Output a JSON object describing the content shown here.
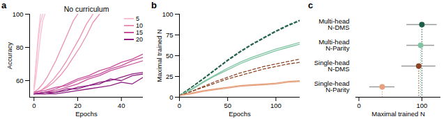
{
  "chart_data": [
    {
      "type": "line",
      "annotations": [
        "a"
      ],
      "title": "No curriculum",
      "x_label": "Epochs",
      "y_label": "Accuracy",
      "xlim": [
        -2,
        50
      ],
      "xticks": [
        0,
        20,
        40
      ],
      "ylim": [
        50,
        100
      ],
      "yticks": [
        60,
        80,
        100
      ],
      "legend": "top-right",
      "series": [
        {
          "name": "5",
          "color": "#f7bfcf",
          "line_style": "solid",
          "runs": [
            {
              "x": [
                0,
                1,
                2,
                3,
                4
              ],
              "values": [
                55,
                70,
                85,
                95,
                100
              ]
            },
            {
              "x": [
                0,
                1,
                2,
                3,
                4,
                5
              ],
              "values": [
                54,
                63,
                75,
                87,
                96,
                100
              ]
            },
            {
              "x": [
                0,
                1,
                2,
                3
              ],
              "values": [
                56,
                72,
                88,
                100
              ]
            }
          ]
        },
        {
          "name": "10",
          "color": "#eb8fb4",
          "line_style": "solid",
          "runs": [
            {
              "x": [
                0,
                2,
                4,
                6,
                8,
                10,
                12,
                14,
                16,
                18,
                20
              ],
              "values": [
                53,
                55,
                58,
                62,
                67,
                72,
                78,
                84,
                90,
                96,
                100
              ]
            },
            {
              "x": [
                0,
                3,
                6,
                9,
                12,
                15,
                18,
                21,
                24,
                27
              ],
              "values": [
                53,
                54,
                57,
                61,
                66,
                72,
                79,
                86,
                94,
                100
              ]
            },
            {
              "x": [
                0,
                3,
                6,
                9,
                12,
                15,
                18,
                21,
                24,
                27,
                30
              ],
              "values": [
                52,
                54,
                56,
                59,
                63,
                68,
                74,
                80,
                87,
                95,
                100
              ]
            }
          ]
        },
        {
          "name": "15",
          "color": "#c8509b",
          "line_style": "solid",
          "runs": [
            {
              "x": [
                0,
                5,
                10,
                15,
                20,
                25,
                30,
                35,
                40,
                45,
                50
              ],
              "values": [
                52,
                53,
                55,
                58,
                61,
                63,
                66,
                68,
                71,
                73,
                76
              ]
            },
            {
              "x": [
                0,
                5,
                10,
                15,
                20,
                25,
                30,
                35,
                40,
                45,
                50
              ],
              "values": [
                53,
                54,
                56,
                57,
                60,
                62,
                64,
                67,
                69,
                72,
                74
              ]
            },
            {
              "x": [
                0,
                5,
                10,
                15,
                20,
                25,
                30,
                35,
                40,
                45,
                50
              ],
              "values": [
                52,
                53,
                54,
                56,
                58,
                61,
                63,
                66,
                68,
                70,
                72
              ]
            }
          ]
        },
        {
          "name": "20",
          "color": "#8b1d7e",
          "line_style": "solid",
          "runs": [
            {
              "x": [
                0,
                5,
                10,
                15,
                20,
                25,
                30,
                35,
                40,
                45,
                50
              ],
              "values": [
                52,
                52,
                53,
                54,
                56,
                57,
                59,
                60,
                62,
                64,
                65
              ]
            },
            {
              "x": [
                0,
                5,
                10,
                15,
                20,
                25,
                30,
                35,
                40,
                45,
                50
              ],
              "values": [
                52,
                53,
                53,
                55,
                55,
                57,
                58,
                61,
                60,
                63,
                64
              ]
            },
            {
              "x": [
                0,
                5,
                10,
                15,
                20,
                25,
                30,
                35,
                40,
                45,
                50
              ],
              "values": [
                52,
                52,
                52,
                53,
                54,
                55,
                56,
                57,
                59,
                58,
                62
              ]
            }
          ]
        }
      ]
    },
    {
      "type": "line",
      "annotations": [
        "b"
      ],
      "x_label": "Epochs",
      "y_label": "Maximal trained N",
      "xlim": [
        0,
        125
      ],
      "xticks": [
        0,
        50,
        100
      ],
      "ylim": [
        0,
        100
      ],
      "yticks": [
        0,
        25,
        50,
        75,
        100
      ],
      "x": [
        0,
        12.5,
        25,
        37.5,
        50,
        62.5,
        75,
        87.5,
        100,
        112.5,
        125
      ],
      "series": [
        {
          "color": "#1e5e46",
          "line_style": "dashed",
          "runs": [
            {
              "values": [
                2,
                12,
                23,
                34,
                45,
                55,
                64,
                72,
                80,
                87,
                93
              ]
            },
            {
              "values": [
                2,
                12,
                22,
                33,
                44,
                54,
                63,
                71,
                79,
                86,
                92
              ]
            }
          ]
        },
        {
          "color": "#7fc3a3",
          "line_style": "solid",
          "runs": [
            {
              "values": [
                2,
                10,
                19,
                27,
                35,
                42,
                48,
                53,
                58,
                62,
                66
              ]
            },
            {
              "values": [
                2,
                9,
                18,
                26,
                33,
                40,
                46,
                51,
                56,
                60,
                64
              ]
            }
          ]
        },
        {
          "color": "#8a4527",
          "line_style": "dashed",
          "runs": [
            {
              "values": [
                2,
                7,
                13,
                19,
                24,
                29,
                33,
                37,
                40,
                43,
                46
              ]
            },
            {
              "values": [
                2,
                7,
                12,
                17,
                22,
                26,
                30,
                34,
                37,
                40,
                42
              ]
            }
          ]
        },
        {
          "color": "#e6a07d",
          "line_style": "solid",
          "runs": [
            {
              "values": [
                2,
                5,
                8,
                10,
                12,
                14,
                15,
                16,
                17,
                19,
                20
              ]
            },
            {
              "values": [
                2,
                4,
                7,
                9,
                11,
                13,
                14,
                15,
                16,
                18,
                19
              ]
            }
          ]
        }
      ]
    },
    {
      "type": "scatter",
      "annotations": [
        "c"
      ],
      "orientation": "horizontal",
      "x_label": "Maximal trained N",
      "xlim": [
        -5,
        130
      ],
      "xticks": [
        0,
        100
      ],
      "categories": [
        "Multi-head\nN-DMS",
        "Multi-head\nN-Parity",
        "Single-head\nN-DMS",
        "Single-head\nN-Parity"
      ],
      "values": [
        100,
        98,
        95,
        37
      ],
      "errors": [
        24,
        22,
        27,
        20
      ],
      "colors": [
        "#1e5e46",
        "#7fc3a3",
        "#8a4527",
        "#e6a07d"
      ],
      "marker": "circle"
    }
  ]
}
